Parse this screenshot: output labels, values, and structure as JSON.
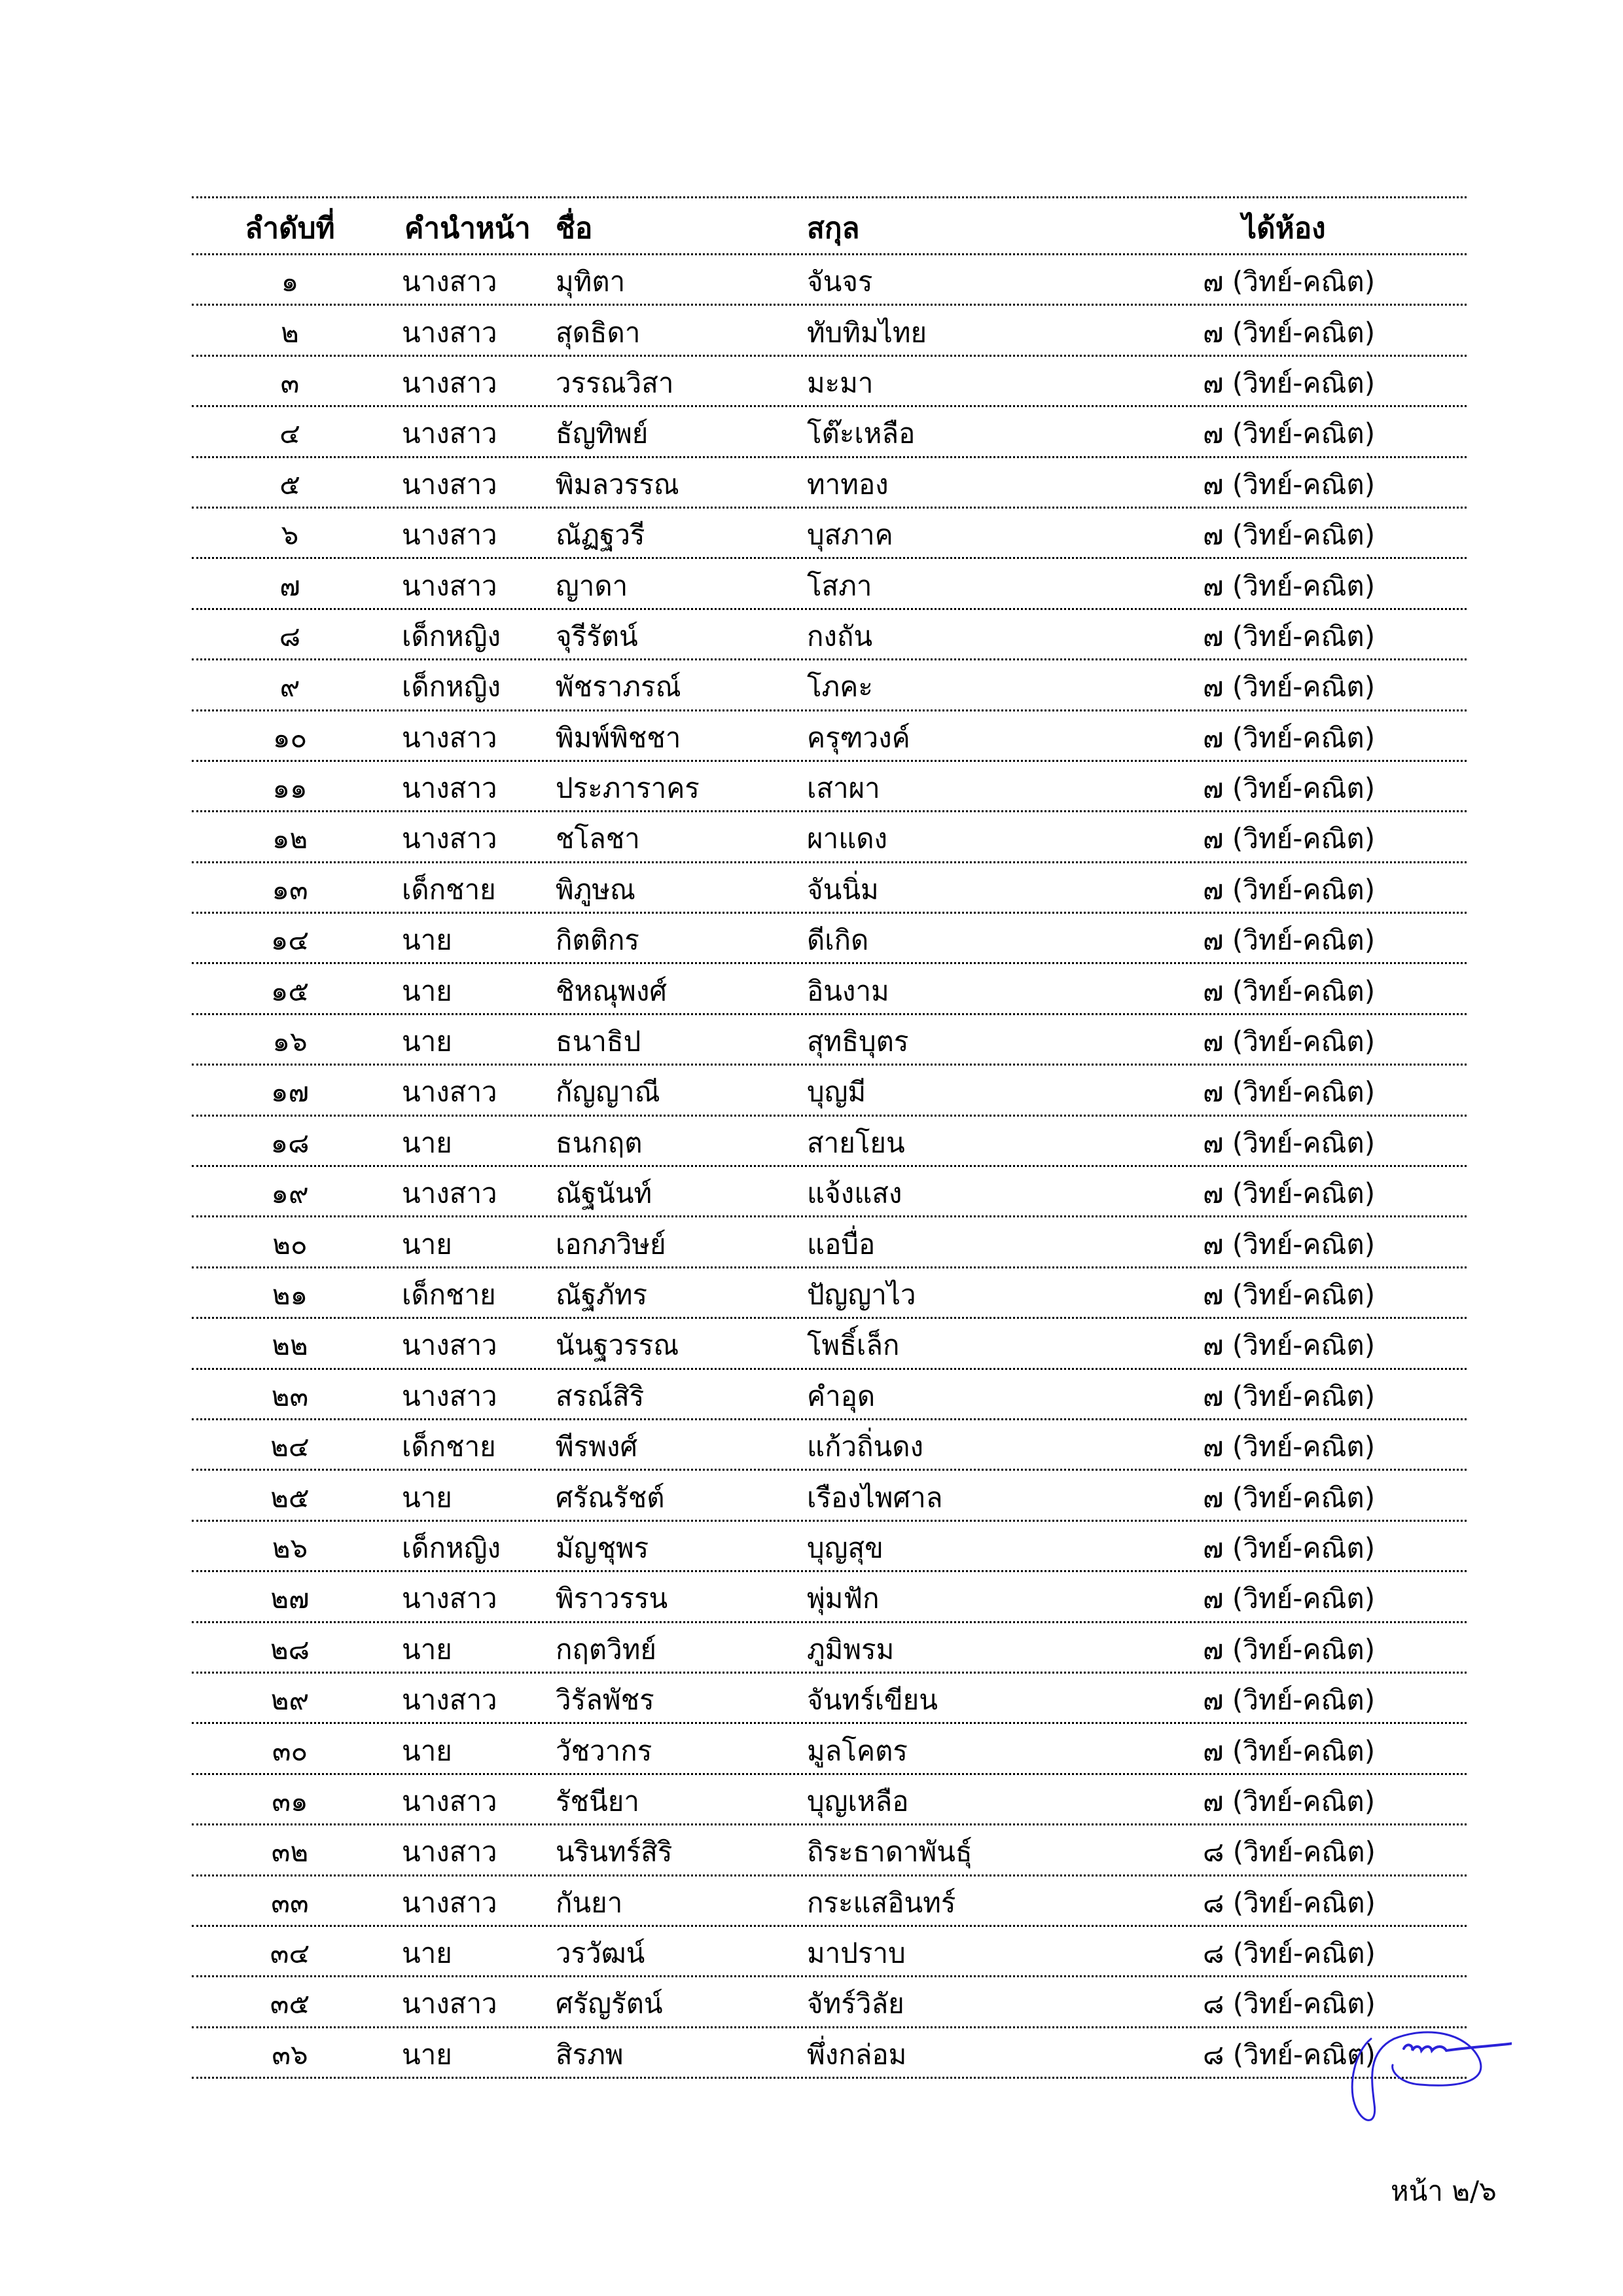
{
  "table": {
    "headers": {
      "no": "ลำดับที่",
      "prefix": "คำนำหน้า",
      "first": "ชื่อ",
      "last": "สกุล",
      "room": "ได้ห้อง"
    },
    "rows": [
      {
        "no": "๑",
        "prefix": "นางสาว",
        "first": "มุทิตา",
        "last": "จันจร",
        "room": "๗ (วิทย์-คณิต)"
      },
      {
        "no": "๒",
        "prefix": "นางสาว",
        "first": "สุดธิดา",
        "last": "ทับทิมไทย",
        "room": "๗ (วิทย์-คณิต)"
      },
      {
        "no": "๓",
        "prefix": "นางสาว",
        "first": "วรรณวิสา",
        "last": "มะมา",
        "room": "๗ (วิทย์-คณิต)"
      },
      {
        "no": "๔",
        "prefix": "นางสาว",
        "first": "ธัญทิพย์",
        "last": "โต๊ะเหลือ",
        "room": "๗ (วิทย์-คณิต)"
      },
      {
        "no": "๕",
        "prefix": "นางสาว",
        "first": "พิมลวรรณ",
        "last": "ทาทอง",
        "room": "๗ (วิทย์-คณิต)"
      },
      {
        "no": "๖",
        "prefix": "นางสาว",
        "first": "ณัฏฐวรี",
        "last": "บุสภาค",
        "room": "๗ (วิทย์-คณิต)"
      },
      {
        "no": "๗",
        "prefix": "นางสาว",
        "first": "ญาดา",
        "last": "โสภา",
        "room": "๗ (วิทย์-คณิต)"
      },
      {
        "no": "๘",
        "prefix": "เด็กหญิง",
        "first": "จุรีรัตน์",
        "last": "กงถัน",
        "room": "๗ (วิทย์-คณิต)"
      },
      {
        "no": "๙",
        "prefix": "เด็กหญิง",
        "first": "พัชราภรณ์",
        "last": "โภคะ",
        "room": "๗ (วิทย์-คณิต)"
      },
      {
        "no": "๑๐",
        "prefix": "นางสาว",
        "first": "พิมพ์พิชชา",
        "last": "ครุฑวงค์",
        "room": "๗ (วิทย์-คณิต)"
      },
      {
        "no": "๑๑",
        "prefix": "นางสาว",
        "first": "ประภาราคร",
        "last": "เสาผา",
        "room": "๗ (วิทย์-คณิต)"
      },
      {
        "no": "๑๒",
        "prefix": "นางสาว",
        "first": "ชโลชา",
        "last": "ผาแดง",
        "room": "๗ (วิทย์-คณิต)"
      },
      {
        "no": "๑๓",
        "prefix": "เด็กชาย",
        "first": "พิภูษณ",
        "last": "จันนิ่ม",
        "room": "๗ (วิทย์-คณิต)"
      },
      {
        "no": "๑๔",
        "prefix": "นาย",
        "first": "กิตติกร",
        "last": "ดีเกิด",
        "room": "๗ (วิทย์-คณิต)"
      },
      {
        "no": "๑๕",
        "prefix": "นาย",
        "first": "ชิหณุพงศ์",
        "last": "อินงาม",
        "room": "๗ (วิทย์-คณิต)"
      },
      {
        "no": "๑๖",
        "prefix": "นาย",
        "first": "ธนาธิป",
        "last": "สุทธิบุตร",
        "room": "๗ (วิทย์-คณิต)"
      },
      {
        "no": "๑๗",
        "prefix": "นางสาว",
        "first": "กัญญาณี",
        "last": "บุญมี",
        "room": "๗ (วิทย์-คณิต)"
      },
      {
        "no": "๑๘",
        "prefix": "นาย",
        "first": "ธนกฤต",
        "last": "สายโยน",
        "room": "๗ (วิทย์-คณิต)"
      },
      {
        "no": "๑๙",
        "prefix": "นางสาว",
        "first": "ณัฐนันท์",
        "last": "แจ้งแสง",
        "room": "๗ (วิทย์-คณิต)"
      },
      {
        "no": "๒๐",
        "prefix": "นาย",
        "first": "เอกภวิษย์",
        "last": "แอบื่อ",
        "room": "๗ (วิทย์-คณิต)"
      },
      {
        "no": "๒๑",
        "prefix": "เด็กชาย",
        "first": "ณัฐภัทร",
        "last": "ปัญญาไว",
        "room": "๗ (วิทย์-คณิต)"
      },
      {
        "no": "๒๒",
        "prefix": "นางสาว",
        "first": "นันฐวรรณ",
        "last": "โพธิ์เล็ก",
        "room": "๗ (วิทย์-คณิต)"
      },
      {
        "no": "๒๓",
        "prefix": "นางสาว",
        "first": "สรณ์สิริ",
        "last": "คำอุด",
        "room": "๗ (วิทย์-คณิต)"
      },
      {
        "no": "๒๔",
        "prefix": "เด็กชาย",
        "first": "พีรพงศ์",
        "last": "แก้วถิ่นดง",
        "room": "๗ (วิทย์-คณิต)"
      },
      {
        "no": "๒๕",
        "prefix": "นาย",
        "first": "ศรัณรัชต์",
        "last": "เรืองไพศาล",
        "room": "๗ (วิทย์-คณิต)"
      },
      {
        "no": "๒๖",
        "prefix": "เด็กหญิง",
        "first": "มัญชุพร",
        "last": "บุญสุข",
        "room": "๗ (วิทย์-คณิต)"
      },
      {
        "no": "๒๗",
        "prefix": "นางสาว",
        "first": "พิราวรรน",
        "last": "พุ่มฟัก",
        "room": "๗ (วิทย์-คณิต)"
      },
      {
        "no": "๒๘",
        "prefix": "นาย",
        "first": "กฤตวิทย์",
        "last": "ภูมิพรม",
        "room": "๗ (วิทย์-คณิต)"
      },
      {
        "no": "๒๙",
        "prefix": "นางสาว",
        "first": "วิรัลพัชร",
        "last": "จันทร์เขียน",
        "room": "๗ (วิทย์-คณิต)"
      },
      {
        "no": "๓๐",
        "prefix": "นาย",
        "first": "วัชวากร",
        "last": "มูลโคตร",
        "room": "๗ (วิทย์-คณิต)"
      },
      {
        "no": "๓๑",
        "prefix": "นางสาว",
        "first": "รัชนียา",
        "last": "บุญเหลือ",
        "room": "๗ (วิทย์-คณิต)"
      },
      {
        "no": "๓๒",
        "prefix": "นางสาว",
        "first": "นรินทร์สิริ",
        "last": "ถิระธาดาพันธุ์",
        "room": "๘ (วิทย์-คณิต)"
      },
      {
        "no": "๓๓",
        "prefix": "นางสาว",
        "first": "กันยา",
        "last": "กระแสอินทร์",
        "room": "๘ (วิทย์-คณิต)"
      },
      {
        "no": "๓๔",
        "prefix": "นาย",
        "first": "วรวัฒน์",
        "last": "มาปราบ",
        "room": "๘ (วิทย์-คณิต)"
      },
      {
        "no": "๓๕",
        "prefix": "นางสาว",
        "first": "ศรัญรัตน์",
        "last": "จัทร์วิลัย",
        "room": "๘ (วิทย์-คณิต)"
      },
      {
        "no": "๓๖",
        "prefix": "นาย",
        "first": "สิรภพ",
        "last": "พึ่งกล่อม",
        "room": "๘ (วิทย์-คณิต)"
      }
    ]
  },
  "footer": {
    "page": "หน้า ๒/๖"
  },
  "signature": {
    "ink_color": "#2a22d8"
  }
}
